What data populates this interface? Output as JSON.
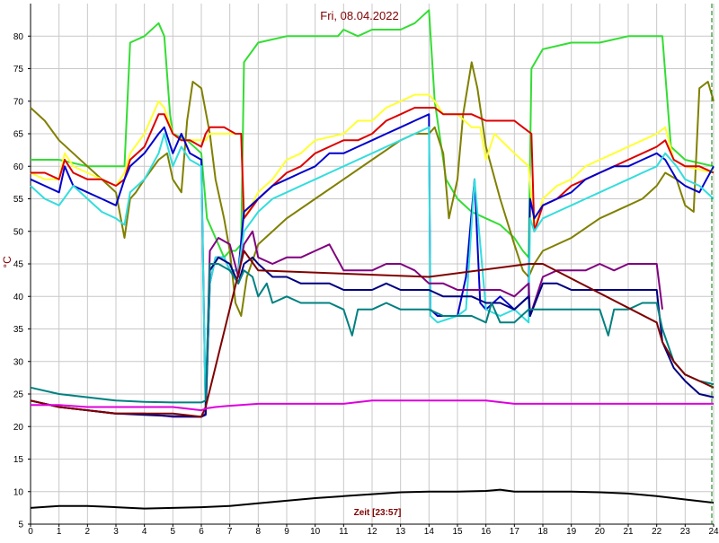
{
  "chart_data": {
    "type": "line",
    "title": "Fri, 08.04.2022",
    "xlabel": "Zeit [23:57]",
    "ylabel": "°C",
    "xlim": [
      0,
      24
    ],
    "ylim": [
      5,
      85
    ],
    "xticks": [
      "0",
      "1",
      "2",
      "3",
      "4",
      "5",
      "6",
      "7",
      "8",
      "9",
      "10",
      "11",
      "12",
      "13",
      "14",
      "15",
      "16",
      "17",
      "18",
      "19",
      "20",
      "21",
      "22",
      "23",
      "24"
    ],
    "yticks": [
      "5",
      "10",
      "15",
      "20",
      "25",
      "30",
      "35",
      "40",
      "45",
      "50",
      "55",
      "60",
      "65",
      "70",
      "75",
      "80"
    ],
    "grid": true,
    "colors": {
      "title": "#800000",
      "axis_labels": "#800000",
      "grid": "#c8c8c8",
      "end_marker": "#008000"
    },
    "series": [
      {
        "color": "#33dd33",
        "x": [
          0,
          1,
          2,
          3,
          3.3,
          3.5,
          4,
          4.5,
          4.7,
          4.9,
          5,
          5.5,
          6,
          6.2,
          6.5,
          6.8,
          7,
          7.2,
          7.4,
          7.5,
          8,
          9,
          10,
          10.8,
          11,
          11.5,
          12,
          12.5,
          13,
          13.5,
          14,
          14.2,
          14.6,
          15,
          15.5,
          16,
          16.5,
          17,
          17.3,
          17.5,
          17.6,
          18,
          19,
          20,
          21,
          22,
          22.2,
          22.5,
          23,
          24
        ],
        "y": [
          61,
          61,
          60,
          60,
          60,
          79,
          80,
          82,
          80,
          68,
          65,
          64,
          62,
          52,
          49,
          46,
          47,
          47,
          48,
          76,
          79,
          80,
          80,
          80,
          81,
          80,
          81,
          81,
          81,
          82,
          84,
          70,
          58,
          55,
          53,
          52,
          51,
          49,
          47,
          46,
          75,
          78,
          79,
          79,
          80,
          80,
          80,
          63,
          61,
          60
        ]
      },
      {
        "color": "#808000",
        "x": [
          0,
          0.5,
          1,
          1.5,
          2,
          2.5,
          3,
          3.3,
          3.5,
          3.7,
          4,
          4.5,
          4.8,
          5,
          5.3,
          5.5,
          5.7,
          6,
          6.3,
          6.5,
          6.8,
          7,
          7.2,
          7.4,
          7.6,
          8,
          9,
          10,
          11,
          12,
          13,
          13.5,
          14,
          14.2,
          14.5,
          14.7,
          15,
          15.2,
          15.5,
          15.7,
          16,
          16.5,
          17,
          17.3,
          17.5,
          17.7,
          18,
          19,
          20,
          21,
          21.5,
          22,
          22.3,
          22.7,
          23,
          23.3,
          23.5,
          23.8,
          24
        ],
        "y": [
          69,
          67,
          64,
          62,
          60,
          58,
          56,
          49,
          55,
          56,
          58,
          61,
          62,
          58,
          56,
          67,
          73,
          72,
          65,
          58,
          52,
          47,
          39,
          37,
          43,
          48,
          52,
          55,
          58,
          61,
          64,
          65,
          65,
          66,
          62,
          52,
          58,
          68,
          76,
          72,
          63,
          55,
          48,
          44,
          43,
          45,
          47,
          49,
          52,
          54,
          55,
          57,
          59,
          58,
          54,
          53,
          72,
          73,
          70
        ]
      },
      {
        "color": "#ffff33",
        "x": [
          0,
          0.5,
          1,
          1.2,
          1.5,
          2,
          2.5,
          3,
          3.3,
          3.5,
          4,
          4.5,
          4.7,
          5,
          5.3,
          5.6,
          6,
          6.15,
          6.3,
          6.8,
          7.2,
          7.4,
          7.5,
          8,
          8.5,
          9,
          9.5,
          10,
          11,
          11.5,
          12,
          12.5,
          13,
          13.5,
          14,
          14.2,
          14.5,
          15,
          15.5,
          15.8,
          16,
          16.3,
          17,
          17.5,
          17.7,
          18,
          18.5,
          19,
          19.5,
          20,
          20.5,
          21,
          21.5,
          22,
          22.3,
          22.6,
          23,
          24
        ],
        "y": [
          59,
          58,
          58,
          62,
          60,
          59,
          58,
          57,
          59,
          62,
          65,
          70,
          69,
          65,
          64,
          64,
          64,
          64,
          65,
          65,
          65,
          65,
          52,
          56,
          58,
          61,
          62,
          64,
          65,
          67,
          67,
          69,
          70,
          71,
          71,
          70,
          68,
          68,
          66,
          66,
          61,
          65,
          62,
          60,
          50,
          55,
          57,
          58,
          60,
          61,
          62,
          63,
          64,
          65,
          66,
          61,
          60,
          59
        ]
      },
      {
        "color": "#dd0000",
        "x": [
          0,
          0.5,
          1,
          1.2,
          1.5,
          2,
          2.5,
          3,
          3.3,
          3.5,
          4,
          4.5,
          4.7,
          5,
          5.3,
          5.6,
          6,
          6.15,
          6.3,
          6.8,
          7.2,
          7.4,
          7.5,
          8,
          8.5,
          9,
          9.5,
          10,
          10.5,
          11,
          11.5,
          12,
          12.5,
          13,
          13.5,
          14,
          14.2,
          14.5,
          15,
          15.5,
          16,
          16.5,
          17,
          17.3,
          17.6,
          17.7,
          18,
          18.5,
          19,
          19.5,
          20,
          20.5,
          21,
          21.5,
          22,
          22.3,
          22.6,
          23,
          23.5,
          24
        ],
        "y": [
          59,
          59,
          58,
          61,
          59,
          58,
          58,
          57,
          58,
          61,
          63,
          68,
          68,
          65,
          64,
          64,
          63,
          65,
          66,
          66,
          65,
          65,
          52,
          55,
          57,
          59,
          60,
          62,
          63,
          64,
          64,
          65,
          67,
          68,
          69,
          69,
          69,
          68,
          68,
          68,
          67,
          67,
          67,
          66,
          65,
          50,
          54,
          55,
          57,
          58,
          59,
          60,
          61,
          62,
          63,
          64,
          61,
          60,
          60,
          59
        ]
      },
      {
        "color": "#0000cc",
        "x": [
          0,
          0.5,
          1,
          1.2,
          1.5,
          2,
          2.5,
          3,
          3.3,
          3.5,
          4,
          4.5,
          4.7,
          5,
          5.3,
          5.6,
          6,
          6.15,
          6.3,
          6.5,
          6.8,
          7,
          7.3,
          7.5,
          8,
          8.5,
          9,
          9.5,
          10,
          10.5,
          11,
          11.5,
          12,
          12.5,
          13,
          13.5,
          14,
          14.05,
          14.3,
          15,
          15.3,
          15.6,
          15.8,
          16,
          16.5,
          17,
          17.5,
          17.55,
          17.7,
          18,
          18.5,
          19,
          19.5,
          20,
          20.5,
          21,
          21.5,
          22,
          22.3,
          22.7,
          23,
          23.5,
          24
        ],
        "y": [
          58,
          57,
          56,
          60,
          57,
          56,
          55,
          54,
          58,
          60,
          62,
          65,
          66,
          62,
          65,
          62,
          61,
          22,
          42,
          46,
          46,
          44,
          44,
          53,
          55,
          57,
          58,
          59,
          60,
          62,
          62,
          63,
          64,
          65,
          66,
          67,
          68,
          38,
          37,
          37,
          43,
          58,
          39,
          38,
          40,
          38,
          40,
          55,
          52,
          54,
          55,
          56,
          58,
          59,
          60,
          60,
          61,
          62,
          61,
          58,
          57,
          56,
          60
        ]
      },
      {
        "color": "#33dddd",
        "x": [
          0,
          0.5,
          1,
          1.5,
          2,
          2.5,
          3,
          3.3,
          3.5,
          4,
          4.5,
          4.7,
          5,
          5.3,
          5.6,
          6,
          6.15,
          6.3,
          6.5,
          6.8,
          7,
          7.3,
          7.5,
          8,
          8.5,
          9,
          9.5,
          10,
          10.5,
          11,
          11.5,
          12,
          12.5,
          13,
          13.5,
          14,
          14.05,
          14.3,
          15,
          15.3,
          15.6,
          16,
          16.5,
          17,
          17.5,
          17.55,
          17.7,
          18,
          18.5,
          19,
          19.5,
          20,
          20.5,
          21,
          21.5,
          22,
          22.3,
          22.7,
          23,
          23.5,
          24
        ],
        "y": [
          57,
          55,
          54,
          57,
          55,
          53,
          52,
          51,
          56,
          58,
          62,
          65,
          60,
          63,
          61,
          60,
          22,
          42,
          46,
          46,
          44,
          44,
          50,
          53,
          55,
          56,
          57,
          58,
          59,
          60,
          61,
          62,
          63,
          64,
          65,
          66,
          37,
          36,
          37,
          38,
          58,
          38,
          37,
          38,
          36,
          52,
          50,
          52,
          53,
          54,
          55,
          56,
          57,
          58,
          59,
          60,
          62,
          60,
          58,
          57,
          55
        ]
      },
      {
        "color": "#800080",
        "x": [
          0,
          1,
          2,
          3,
          4,
          5,
          6,
          6.15,
          6.3,
          6.6,
          7,
          7.3,
          7.5,
          7.8,
          8,
          8.5,
          9,
          9.5,
          10,
          10.5,
          11,
          11.5,
          12,
          12.5,
          13,
          13.5,
          14,
          14.2,
          14.5,
          15,
          15.5,
          16,
          16.5,
          17,
          17.5,
          17.55,
          18,
          18.5,
          19,
          19.5,
          20,
          20.5,
          21,
          21.5,
          22,
          22.2
        ],
        "y": [
          24,
          23,
          22.5,
          22,
          22,
          21.5,
          21.5,
          22,
          47,
          49,
          48,
          43,
          48,
          50,
          46,
          45,
          46,
          46,
          47,
          48,
          44,
          44,
          44,
          45,
          45,
          44,
          42,
          42,
          42,
          41,
          41,
          41,
          41,
          40,
          42,
          37,
          43,
          44,
          44,
          44,
          45,
          44,
          45,
          45,
          45,
          38
        ]
      },
      {
        "color": "#000080",
        "x": [
          0,
          1,
          2,
          3,
          4,
          5,
          6,
          6.15,
          6.3,
          6.6,
          7,
          7.3,
          7.5,
          7.8,
          8,
          8.5,
          9,
          9.5,
          10,
          10.5,
          11,
          11.5,
          12,
          12.5,
          13,
          13.5,
          14,
          14.5,
          15,
          15.5,
          16,
          16.5,
          17,
          17.5,
          17.55,
          18,
          18.5,
          19,
          19.5,
          20,
          20.5,
          21,
          21.5,
          22,
          22.2,
          22.6,
          23,
          23.5,
          24
        ],
        "y": [
          24,
          23,
          22.5,
          22,
          21.8,
          21.6,
          21.5,
          21.8,
          44,
          46,
          45,
          42,
          45,
          46,
          45,
          43,
          43,
          42,
          42,
          42,
          41,
          41,
          41,
          42,
          41,
          41,
          41,
          40,
          40,
          40,
          39,
          39,
          38,
          40,
          37,
          42,
          42,
          41,
          41,
          41,
          41,
          41,
          41,
          41,
          33,
          29,
          27,
          25,
          24.5
        ]
      },
      {
        "color": "#008080",
        "x": [
          0,
          1,
          2,
          3,
          4,
          5,
          6,
          6.15,
          6.3,
          6.6,
          7,
          7.3,
          7.5,
          7.8,
          8,
          8.3,
          8.5,
          9,
          9.5,
          10,
          10.5,
          11,
          11.3,
          11.5,
          12,
          12.5,
          13,
          13.5,
          14,
          14.5,
          15,
          15.5,
          16,
          16.2,
          16.5,
          17,
          17.5,
          17.55,
          18,
          18.5,
          19,
          19.5,
          20,
          20.3,
          20.5,
          21,
          21.5,
          22,
          22.2,
          22.6,
          23,
          23.5,
          24
        ],
        "y": [
          26,
          25,
          24.5,
          24,
          23.8,
          23.7,
          23.7,
          24,
          45,
          45,
          44,
          42,
          44,
          43,
          40,
          42,
          39,
          40,
          39,
          39,
          39,
          38,
          34,
          38,
          38,
          39,
          38,
          38,
          38,
          37,
          37,
          37,
          36,
          39,
          36,
          36,
          38,
          38,
          38,
          38,
          38,
          38,
          38,
          34,
          38,
          38,
          39,
          39,
          35,
          30,
          28,
          27,
          26.5
        ]
      },
      {
        "color": "#800000",
        "x": [
          0,
          1,
          2,
          3,
          4,
          5,
          6,
          6.15,
          7.5,
          8,
          14,
          17.5,
          18,
          22,
          22.2,
          22.6,
          23,
          23.5,
          24
        ],
        "y": [
          24,
          23,
          22.5,
          22,
          22,
          22,
          21.5,
          23,
          47,
          44,
          43,
          45,
          45,
          36,
          33,
          30,
          28,
          27,
          26
        ]
      },
      {
        "color": "#dd00dd",
        "x": [
          0,
          1,
          2,
          3,
          4,
          5,
          6,
          6.2,
          6.5,
          7,
          8,
          9,
          10,
          11,
          12,
          13,
          14,
          15,
          16,
          17,
          17.5,
          18,
          19,
          20,
          21,
          22,
          23,
          24
        ],
        "y": [
          23.3,
          23.3,
          23,
          23,
          23,
          23,
          22.5,
          22.8,
          23,
          23.2,
          23.5,
          23.5,
          23.5,
          23.5,
          24,
          24,
          24,
          24,
          24,
          23.5,
          23.5,
          23.5,
          23.5,
          23.5,
          23.5,
          23.5,
          23.5,
          23.5
        ]
      },
      {
        "color": "#000000",
        "x": [
          0,
          1,
          2,
          3,
          4,
          5,
          6,
          7,
          8,
          9,
          10,
          11,
          12,
          13,
          14,
          15,
          16,
          16.5,
          17,
          18,
          19,
          20,
          21,
          22,
          23,
          24
        ],
        "y": [
          7.5,
          7.8,
          7.8,
          7.6,
          7.4,
          7.5,
          7.6,
          7.8,
          8.2,
          8.6,
          9,
          9.3,
          9.6,
          9.9,
          10,
          10,
          10.1,
          10.3,
          10,
          10,
          10,
          9.9,
          9.7,
          9.3,
          8.8,
          8.3
        ]
      }
    ]
  }
}
